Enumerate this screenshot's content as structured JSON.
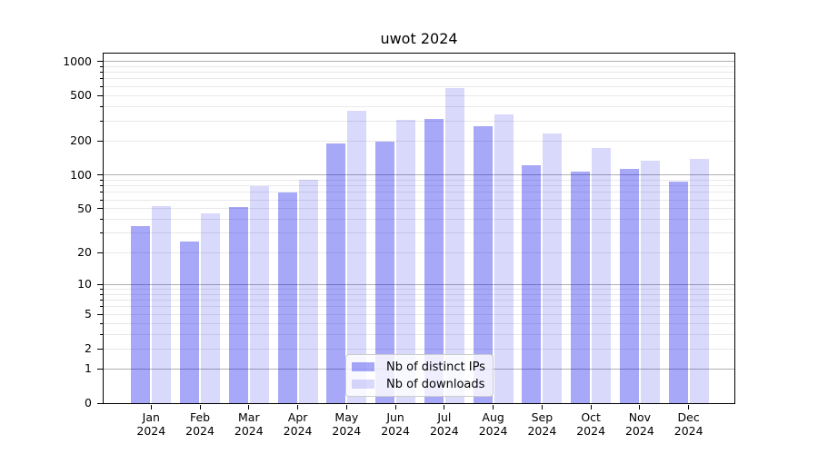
{
  "title": "uwot 2024",
  "chart_data": {
    "type": "bar",
    "title": "uwot 2024",
    "categories": [
      "Jan",
      "Feb",
      "Mar",
      "Apr",
      "May",
      "Jun",
      "Jul",
      "Aug",
      "Sep",
      "Oct",
      "Nov",
      "Dec"
    ],
    "x_tick_second_line": "2024",
    "series": [
      {
        "name": "Nb of distinct IPs",
        "color": "rgba(0,0,235,0.34)",
        "values": [
          35,
          25,
          52,
          70,
          190,
          197,
          313,
          268,
          122,
          106,
          113,
          87
        ]
      },
      {
        "name": "Nb of downloads",
        "color": "rgba(0,0,235,0.15)",
        "values": [
          53,
          45,
          80,
          90,
          365,
          307,
          583,
          341,
          230,
          172,
          134,
          138
        ]
      }
    ],
    "y_axis": {
      "scale": "log1p",
      "tick_values": [
        0,
        1,
        2,
        5,
        10,
        20,
        50,
        100,
        200,
        500,
        1000
      ],
      "tick_labels": [
        "0",
        "1",
        "2",
        "5",
        "10",
        "20",
        "50",
        "100",
        "200",
        "500",
        "1000"
      ],
      "max": 1170,
      "major_gridlines": [
        1,
        10,
        100,
        1000
      ],
      "minor_multipliers": [
        2,
        3,
        4,
        5,
        6,
        7,
        8,
        9
      ],
      "minor_decades": [
        1,
        10,
        100
      ]
    },
    "legend": {
      "position": "lower-center",
      "entries": [
        "Nb of distinct IPs",
        "Nb of downloads"
      ]
    },
    "colors": {
      "bar_ips": "rgba(0,0,235,0.34)",
      "bar_downloads": "rgba(0,0,235,0.15)",
      "major_grid": "#b0b0b0",
      "minor_grid": "#e8e8e8",
      "spine": "#000000",
      "text": "#000000",
      "legend_border": "#cccccc"
    },
    "layout_hints": {
      "grid": "both-major-and-minor",
      "bars_per_group": 2,
      "ylim_bottom": 0
    }
  }
}
